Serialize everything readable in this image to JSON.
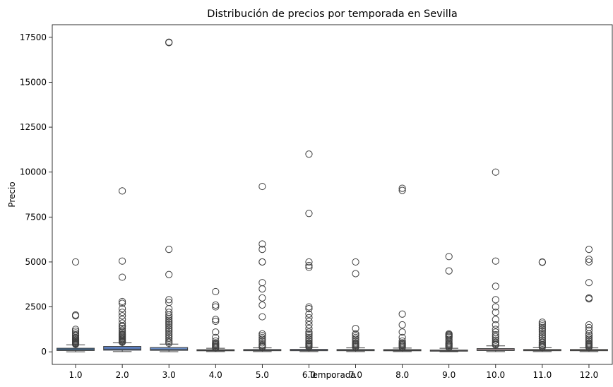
{
  "chart_data": {
    "type": "box",
    "title": "Distribución de precios por temporada en Sevilla",
    "xlabel": "Temporada",
    "ylabel": "Precio",
    "ylim": [
      -700,
      18200
    ],
    "yticks": [
      0,
      2500,
      5000,
      7500,
      10000,
      12500,
      15000,
      17500
    ],
    "grid": false,
    "categories": [
      "1.0",
      "2.0",
      "3.0",
      "4.0",
      "5.0",
      "6.0",
      "7.0",
      "8.0",
      "9.0",
      "10.0",
      "11.0",
      "12.0"
    ],
    "colors": [
      "#4878a8",
      "#5b7fc0",
      "#6a8dc6",
      "#7a9ad0",
      "#8aa6d4",
      "#9aaed6",
      "#a9b2d4",
      "#b8b6cf",
      "#c4b6c6",
      "#cfb4bb",
      "#d8b3ae",
      "#dcb09e"
    ],
    "series": [
      {
        "category": "1.0",
        "min": 0,
        "q1": 70,
        "median": 120,
        "q3": 200,
        "max": 390,
        "outliers": [
          5000,
          2050,
          2000,
          1250,
          1150,
          1050,
          950,
          880,
          800,
          750,
          700,
          650,
          600,
          560,
          520,
          480,
          450,
          420
        ]
      },
      {
        "category": "2.0",
        "min": 10,
        "q1": 90,
        "median": 150,
        "q3": 300,
        "max": 500,
        "outliers": [
          8950,
          5050,
          4150,
          2800,
          2700,
          2400,
          2200,
          2000,
          1800,
          1600,
          1450,
          1400,
          1300,
          1200,
          1100,
          1000,
          950,
          900,
          850,
          800,
          750,
          700,
          650,
          600,
          560,
          530
        ]
      },
      {
        "category": "3.0",
        "min": 5,
        "q1": 80,
        "median": 130,
        "q3": 240,
        "max": 430,
        "outliers": [
          17200,
          17230,
          5700,
          4300,
          2900,
          2750,
          2400,
          2200,
          2050,
          1950,
          1850,
          1750,
          1650,
          1550,
          1450,
          1350,
          1250,
          1150,
          1050,
          950,
          850,
          750,
          650,
          560,
          480
        ]
      },
      {
        "category": "4.0",
        "min": 10,
        "q1": 55,
        "median": 85,
        "q3": 120,
        "max": 200,
        "outliers": [
          3350,
          2600,
          2500,
          1800,
          1700,
          1100,
          800,
          600,
          500,
          450,
          400,
          350,
          300,
          260,
          230
        ]
      },
      {
        "category": "5.0",
        "min": 10,
        "q1": 60,
        "median": 90,
        "q3": 130,
        "max": 220,
        "outliers": [
          9200,
          6000,
          5700,
          5000,
          5000,
          3850,
          3500,
          3000,
          2600,
          1950,
          1000,
          900,
          800,
          700,
          600,
          500,
          400,
          350,
          300,
          260
        ]
      },
      {
        "category": "6.0",
        "min": 10,
        "q1": 60,
        "median": 90,
        "q3": 140,
        "max": 240,
        "outliers": [
          11000,
          7700,
          5000,
          4800,
          4700,
          2500,
          2400,
          2100,
          1900,
          1700,
          1500,
          1300,
          1100,
          1000,
          900,
          800,
          700,
          600,
          500,
          450,
          400,
          350,
          300,
          270
        ]
      },
      {
        "category": "7.0",
        "min": 10,
        "q1": 60,
        "median": 90,
        "q3": 130,
        "max": 220,
        "outliers": [
          5000,
          4350,
          1300,
          1000,
          900,
          800,
          700,
          600,
          500,
          450,
          400,
          350,
          300,
          260
        ]
      },
      {
        "category": "8.0",
        "min": 10,
        "q1": 55,
        "median": 85,
        "q3": 125,
        "max": 210,
        "outliers": [
          9100,
          8980,
          2100,
          1500,
          1100,
          800,
          600,
          500,
          450,
          400,
          350,
          300,
          250
        ]
      },
      {
        "category": "9.0",
        "min": 5,
        "q1": 35,
        "median": 60,
        "q3": 100,
        "max": 200,
        "outliers": [
          5300,
          4500,
          1000,
          950,
          900,
          850,
          800,
          700,
          600,
          500,
          450,
          400,
          350,
          300,
          250
        ]
      },
      {
        "category": "10.0",
        "min": 10,
        "q1": 70,
        "median": 110,
        "q3": 180,
        "max": 330,
        "outliers": [
          10000,
          5050,
          3650,
          2900,
          2500,
          2200,
          1800,
          1500,
          1250,
          1100,
          950,
          850,
          750,
          650,
          550,
          480,
          420,
          380
        ]
      },
      {
        "category": "11.0",
        "min": 10,
        "q1": 60,
        "median": 90,
        "q3": 130,
        "max": 230,
        "outliers": [
          5000,
          4980,
          1650,
          1550,
          1450,
          1350,
          1250,
          1150,
          1050,
          950,
          850,
          750,
          650,
          550,
          480,
          400,
          350,
          300,
          260
        ]
      },
      {
        "category": "12.0",
        "min": 10,
        "q1": 60,
        "median": 90,
        "q3": 130,
        "max": 220,
        "outliers": [
          5700,
          5150,
          5000,
          3850,
          3000,
          2950,
          1500,
          1350,
          1200,
          1000,
          900,
          800,
          700,
          600,
          500,
          450,
          400,
          350,
          300,
          260
        ]
      }
    ]
  }
}
